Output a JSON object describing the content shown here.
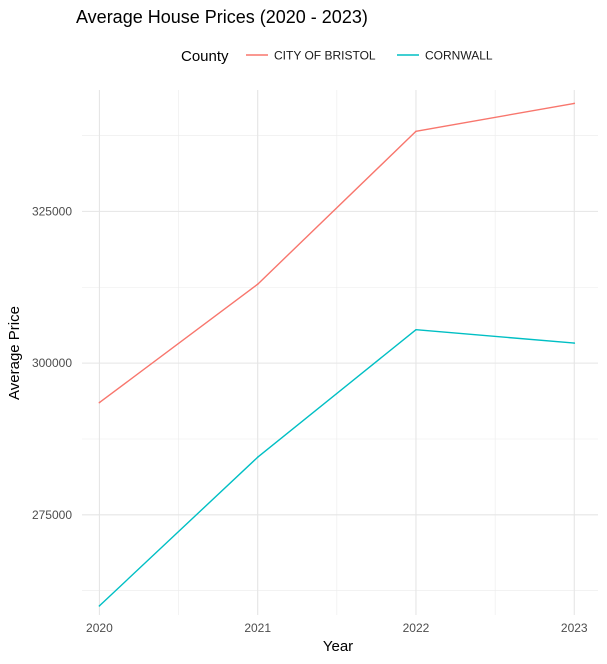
{
  "chart_data": {
    "type": "line",
    "title": "Average House Prices (2020 - 2023)",
    "xlabel": "Year",
    "ylabel": "Average Price",
    "x": [
      2020,
      2021,
      2022,
      2023
    ],
    "x_tick_labels": [
      "2020",
      "2021",
      "2022",
      "2023"
    ],
    "y_ticks": [
      275000,
      300000,
      325000
    ],
    "y_tick_labels": [
      "275000",
      "300000",
      "325000"
    ],
    "xlim": [
      2020,
      2023
    ],
    "ylim": [
      258500,
      345000
    ],
    "grid": true,
    "legend": {
      "title": "County",
      "position": "top"
    },
    "series": [
      {
        "name": "CITY OF BRISTOL",
        "color": "#F8766D",
        "values": [
          293500,
          313000,
          338200,
          342800
        ]
      },
      {
        "name": "CORNWALL",
        "color": "#00BFC4",
        "values": [
          260000,
          284500,
          305500,
          303300
        ]
      }
    ]
  }
}
